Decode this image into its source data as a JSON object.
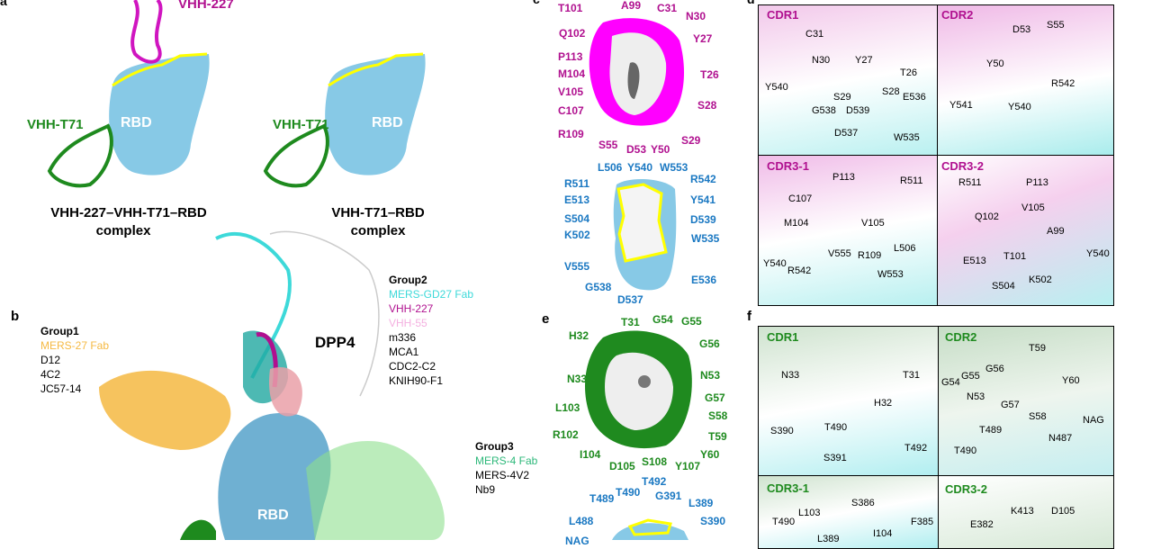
{
  "colors": {
    "rbd": "#87c9e6",
    "vhh227": "#c21aa6",
    "vhh227_text": "#b0108f",
    "vht71": "#1e8a1e",
    "epitope": "#ffff00",
    "mers27": "#f5b942",
    "gd27": "#3dd9d9",
    "vhh55": "#f4b0e0",
    "mers4": "#2db87a",
    "rbd_label": "#1a78c2"
  },
  "panel_a": {
    "letter": "a",
    "labels": [
      "VHH-227",
      "VHH-T71",
      "RBD",
      "VHH-T71",
      "RBD"
    ],
    "caption_left": [
      "VHH-227–VHH-T71–RBD",
      "complex"
    ],
    "caption_right": [
      "VHH-T71–RBD",
      "complex"
    ]
  },
  "panel_b": {
    "letter": "b",
    "dpp4": "DPP4",
    "rbd": "RBD",
    "group1": {
      "title": "Group1",
      "items": [
        "MERS-27 Fab",
        "D12",
        "4C2",
        "JC57-14"
      ]
    },
    "group2": {
      "title": "Group2",
      "items": [
        "MERS-GD27 Fab",
        "VHH-227",
        "VHH-55",
        "m336",
        "MCA1",
        "CDC2-C2",
        "KNIH90-F1"
      ]
    },
    "group3": {
      "title": "Group3",
      "items": [
        "MERS-4 Fab",
        "MERS-4V2",
        "Nb9"
      ]
    }
  },
  "panel_c": {
    "letter": "c",
    "vhh_labels": [
      "T101",
      "A99",
      "C31",
      "N30",
      "Y27",
      "T26",
      "Q102",
      "P113",
      "M104",
      "V105",
      "C107",
      "R109",
      "S28",
      "S55",
      "D53",
      "Y50",
      "S29"
    ],
    "rbd_labels": [
      "L506",
      "Y540",
      "W553",
      "R511",
      "R542",
      "E513",
      "Y541",
      "S504",
      "D539",
      "K502",
      "W535",
      "V555",
      "E536",
      "G538",
      "D537"
    ]
  },
  "panel_d": {
    "letter": "d",
    "subpanels": [
      {
        "title": "CDR1",
        "labels": [
          "C31",
          "N30",
          "Y27",
          "T26",
          "Y540",
          "S29",
          "S28",
          "E536",
          "G538",
          "D539",
          "D537",
          "W535"
        ]
      },
      {
        "title": "CDR2",
        "labels": [
          "D53",
          "S55",
          "Y50",
          "R542",
          "Y541",
          "Y540"
        ]
      },
      {
        "title": "CDR3-1",
        "labels": [
          "P113",
          "R511",
          "C107",
          "M104",
          "V105",
          "V555",
          "R109",
          "L506",
          "Y540",
          "R542",
          "W553"
        ]
      },
      {
        "title": "CDR3-2",
        "labels": [
          "R511",
          "P113",
          "V105",
          "Q102",
          "A99",
          "E513",
          "T101",
          "Y540",
          "K502",
          "S504"
        ]
      }
    ]
  },
  "panel_e": {
    "letter": "e",
    "vhh_labels": [
      "T31",
      "G54",
      "G55",
      "H32",
      "G56",
      "N33",
      "N53",
      "G57",
      "L103",
      "S58",
      "R102",
      "T59",
      "I104",
      "Y60",
      "D105",
      "S108",
      "Y107"
    ],
    "rbd_labels": [
      "T492",
      "T490",
      "T489",
      "G391",
      "L389",
      "L488",
      "S390",
      "NAG"
    ]
  },
  "panel_f": {
    "letter": "f",
    "subpanels": [
      {
        "title": "CDR1",
        "labels": [
          "N33",
          "T31",
          "H32",
          "S390",
          "T490",
          "T492",
          "S391"
        ]
      },
      {
        "title": "CDR2",
        "labels": [
          "T59",
          "G56",
          "G54",
          "G55",
          "Y60",
          "N53",
          "G57",
          "S58",
          "NAG",
          "T489",
          "N487",
          "T490"
        ]
      },
      {
        "title": "CDR3-1",
        "labels": [
          "S386",
          "L103",
          "T490",
          "F385",
          "I104",
          "L389"
        ]
      },
      {
        "title": "CDR3-2",
        "labels": [
          "K413",
          "D105",
          "E382"
        ]
      }
    ]
  }
}
